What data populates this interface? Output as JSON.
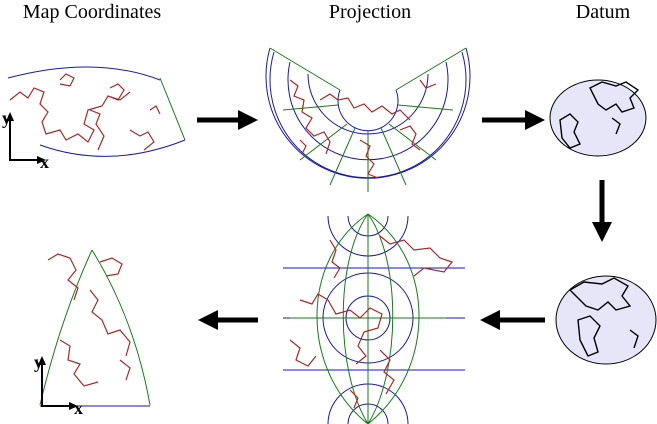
{
  "columns": [
    {
      "label": "Map Coordinates"
    },
    {
      "label": "Projection"
    },
    {
      "label": "Datum"
    }
  ],
  "axes": [
    {
      "y": "y",
      "x": "x"
    },
    {
      "y": "y",
      "x": "x"
    }
  ]
}
